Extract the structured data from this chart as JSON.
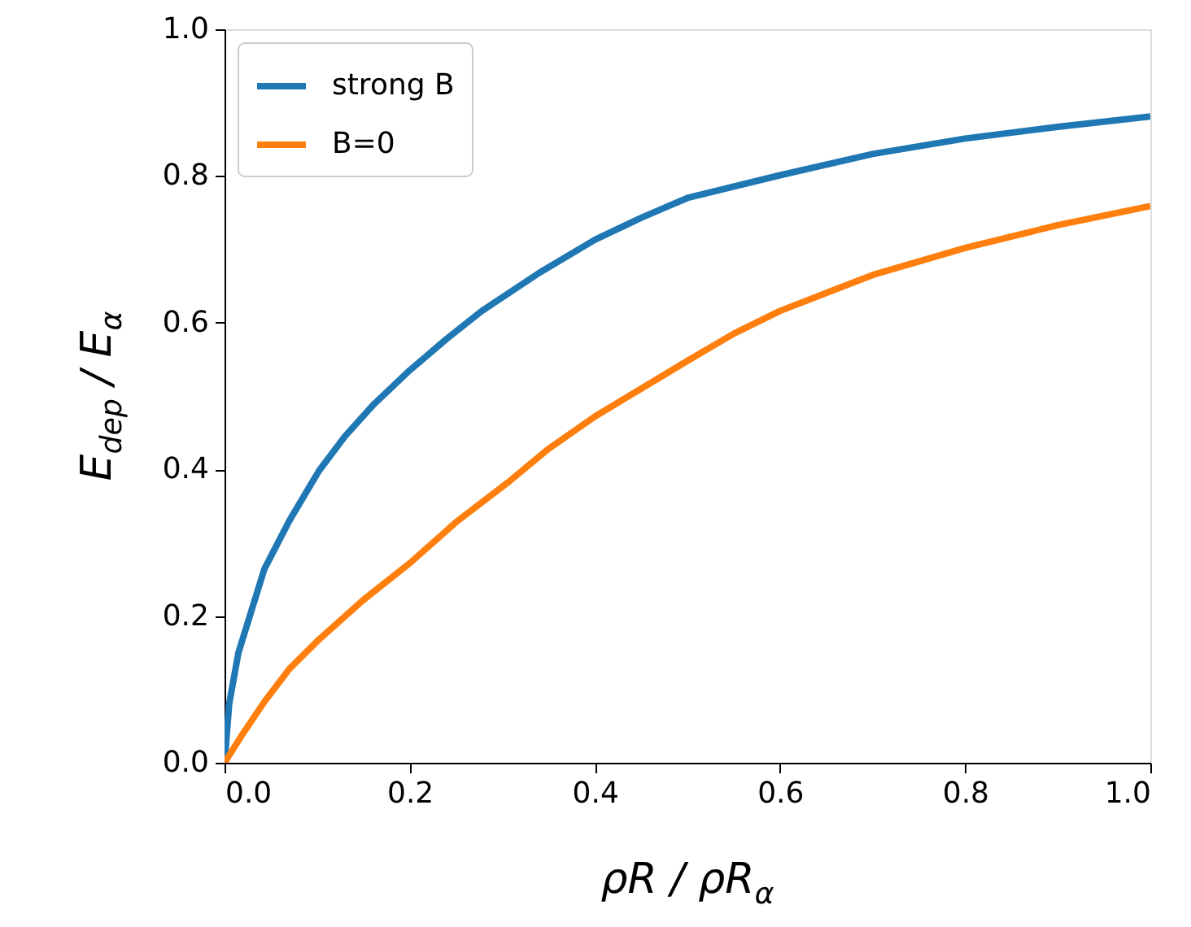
{
  "chart_data": {
    "type": "line",
    "xlabel": "ρR / ρR$_{α}$",
    "ylabel": "E$_{dep}$ / E$_{α}$",
    "xlim": [
      0,
      1
    ],
    "ylim": [
      0,
      1
    ],
    "xticks": [
      {
        "value": 0,
        "label": "0.0"
      },
      0.2,
      0.4,
      0.6,
      0.8,
      {
        "value": 1,
        "label": "1.0"
      }
    ],
    "yticks": [
      {
        "value": 0,
        "label": "0.0"
      },
      0.2,
      0.4,
      0.6,
      0.8,
      {
        "value": 1,
        "label": "1.0"
      }
    ],
    "grid": false,
    "legend": "top left",
    "marker": "none",
    "line_style": "solid",
    "series": [
      {
        "name": "strong B",
        "color": "#1f77b4",
        "x": [
          0,
          0.005,
          0.015,
          0.043,
          0.07,
          0.102,
          0.13,
          0.16,
          0.2,
          0.24,
          0.278,
          0.34,
          0.4,
          0.45,
          0.5,
          0.6,
          0.7,
          0.8,
          0.9,
          1.0
        ],
        "values": [
          0,
          0.08,
          0.15,
          0.264,
          0.33,
          0.398,
          0.445,
          0.487,
          0.535,
          0.578,
          0.616,
          0.668,
          0.713,
          0.743,
          0.77,
          0.801,
          0.83,
          0.851,
          0.867,
          0.881
        ]
      },
      {
        "name": "B=0",
        "color": "#ff7f0e",
        "x": [
          0,
          0.02,
          0.043,
          0.07,
          0.102,
          0.15,
          0.2,
          0.25,
          0.307,
          0.35,
          0.4,
          0.45,
          0.5,
          0.55,
          0.6,
          0.7,
          0.8,
          0.9,
          1.0
        ],
        "values": [
          0,
          0.04,
          0.083,
          0.128,
          0.168,
          0.222,
          0.272,
          0.328,
          0.383,
          0.428,
          0.472,
          0.51,
          0.548,
          0.585,
          0.616,
          0.665,
          0.702,
          0.733,
          0.759
        ]
      }
    ]
  }
}
